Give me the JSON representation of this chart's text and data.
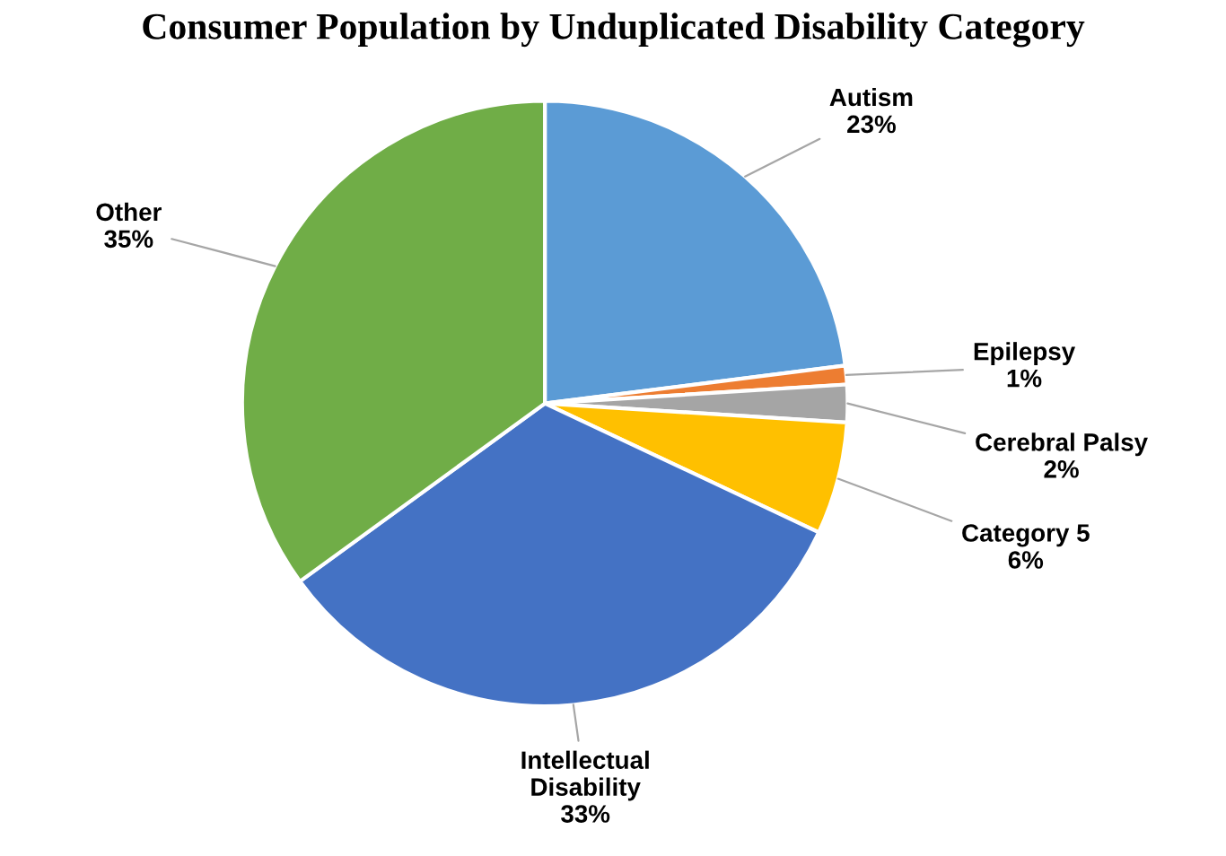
{
  "chart_data": {
    "type": "pie",
    "title": "Consumer Population by Unduplicated Disability Category",
    "categories": [
      "Autism",
      "Epilepsy",
      "Cerebral Palsy",
      "Category 5",
      "Intellectual Disability",
      "Other"
    ],
    "values": [
      23,
      1,
      2,
      6,
      33,
      35
    ],
    "colors": [
      "#5b9bd5",
      "#ed7d31",
      "#a5a5a5",
      "#ffc000",
      "#4472c4",
      "#70ad47"
    ],
    "value_labels": [
      "23%",
      "1%",
      "2%",
      "6%",
      "33%",
      "35%"
    ],
    "legend": false
  }
}
